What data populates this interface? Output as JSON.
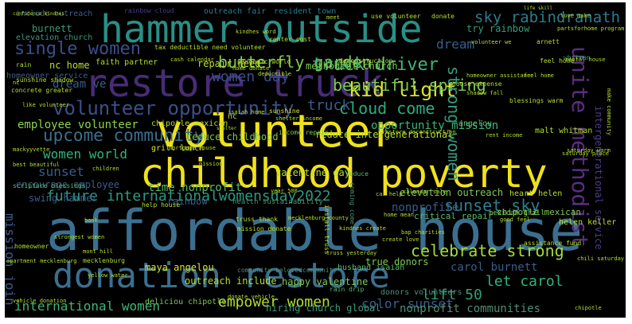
{
  "wordcloud": {
    "words": [
      {
        "text": "affordable house",
        "color": "#3b6f8f"
      },
      {
        "text": "childhood poverty",
        "color": "#f0e11b"
      },
      {
        "text": "volunteer",
        "color": "#f0e11b"
      },
      {
        "text": "restore truck",
        "color": "#482c76"
      },
      {
        "text": "hammer outside",
        "color": "#2a8f86"
      },
      {
        "text": "donation restore",
        "color": "#3b6f8f"
      },
      {
        "text": "volunteer opportunity",
        "color": "#3a4f8a"
      },
      {
        "text": "unite methodist",
        "color": "#5a2d85"
      },
      {
        "text": "future internationalwomensday2022",
        "color": "#2a9a82"
      },
      {
        "text": "butterfly garden",
        "color": "#80c94f"
      },
      {
        "text": "kid light",
        "color": "#d7e22a"
      },
      {
        "text": "sky rabindranath",
        "color": "#2d7c8c"
      },
      {
        "text": "truck driver",
        "color": "#3fb477"
      },
      {
        "text": "single women",
        "color": "#3a4f8a"
      },
      {
        "text": "beautiful spring",
        "color": "#7dca52"
      },
      {
        "text": "upcome community",
        "color": "#3b6f8f"
      },
      {
        "text": "women day",
        "color": "#3a4f8a"
      },
      {
        "text": "cloud come",
        "color": "#28ae80"
      },
      {
        "text": "opportunity mission",
        "color": "#3fb477"
      },
      {
        "text": "strong women",
        "color": "#3a9a7d"
      },
      {
        "text": "truck",
        "color": "#3a5d8b"
      },
      {
        "text": "women world",
        "color": "#2fb47c"
      },
      {
        "text": "sunset",
        "color": "#3a5d8b"
      },
      {
        "text": "sunset sky",
        "color": "#2e7e8e"
      },
      {
        "text": "celebrate strong",
        "color": "#a5db36"
      },
      {
        "text": "international women",
        "color": "#3fb477"
      },
      {
        "text": "empower women",
        "color": "#b5de2b"
      },
      {
        "text": "color sunset",
        "color": "#3a5d8b"
      },
      {
        "text": "lift 50",
        "color": "#2fa07d"
      },
      {
        "text": "let carol",
        "color": "#2fb47c"
      },
      {
        "text": "carol burnett",
        "color": "#3a5d8b"
      },
      {
        "text": "nonprofit communities",
        "color": "#4f8f74"
      },
      {
        "text": "mission join",
        "color": "#3a5d8b"
      },
      {
        "text": "employee volunteer",
        "color": "#8bd54a"
      },
      {
        "text": "encourage employee",
        "color": "#3a5d8b"
      },
      {
        "text": "reduce childhood",
        "color": "#7dca52"
      },
      {
        "text": "time nonprofit",
        "color": "#5ab96b"
      },
      {
        "text": "nonprofite",
        "color": "#3a5d8b"
      },
      {
        "text": "dream",
        "color": "#3a5d8b"
      },
      {
        "text": "dream ve",
        "color": "#3a5d8b"
      },
      {
        "text": "elevation outreach",
        "color": "#7dca52"
      },
      {
        "text": "maya angelou",
        "color": "#d7e22a"
      },
      {
        "text": "outreach include",
        "color": "#b5de2b"
      },
      {
        "text": "happy valentine",
        "color": "#7dca52"
      },
      {
        "text": "valentine day",
        "color": "#b5de2b"
      },
      {
        "text": "true donors",
        "color": "#7dca52"
      },
      {
        "text": "critical repair",
        "color": "#5ab96b"
      },
      {
        "text": "intergenerational service",
        "color": "#4f3d8c"
      },
      {
        "text": "hiring church global",
        "color": "#3a9a7d"
      },
      {
        "text": "donors volunteers",
        "color": "#4f8f74"
      },
      {
        "text": "swing hammer",
        "color": "#3a5d8b"
      },
      {
        "text": "rainbow",
        "color": "#3a5d8b"
      },
      {
        "text": "reduce intergenerational",
        "color": "#b5de2b"
      },
      {
        "text": "chipotle mexican",
        "color": "#7dca52"
      },
      {
        "text": "include outreach",
        "color": "#3a5d8b"
      },
      {
        "text": "burnett",
        "color": "#3a9a7d"
      },
      {
        "text": "elevation church",
        "color": "#3a9a7d"
      },
      {
        "text": "outreach fair",
        "color": "#2d7c8c"
      },
      {
        "text": "resident town",
        "color": "#2d7c8c"
      },
      {
        "text": "nc home",
        "color": "#b5de2b"
      },
      {
        "text": "methodist church",
        "color": "#7dca52"
      },
      {
        "text": "repair need",
        "color": "#b5de2b"
      },
      {
        "text": "homeowner service",
        "color": "#3a5d8b"
      },
      {
        "text": "try rainbow",
        "color": "#3a9a7d"
      },
      {
        "text": "whitman",
        "color": "#3a9a7d"
      },
      {
        "text": "angelou",
        "color": "#5ab96b"
      },
      {
        "text": "grill lunch",
        "color": "#d7e22a"
      },
      {
        "text": "husband isaiah",
        "color": "#5ab96b"
      },
      {
        "text": "rain drip",
        "color": "#5ab96b"
      },
      {
        "text": "helen keller",
        "color": "#b5de2b"
      },
      {
        "text": "heart helen",
        "color": "#b5de2b"
      },
      {
        "text": "malt whitman",
        "color": "#b5de2b"
      },
      {
        "text": "nc",
        "color": "#b5de2b"
      },
      {
        "text": "income repair",
        "color": "#7dca52"
      },
      {
        "text": "sunshine",
        "color": "#d7e22a"
      },
      {
        "text": "blessings warm",
        "color": "#b5de2b"
      },
      {
        "text": "reduce",
        "color": "#5ab96b"
      },
      {
        "text": "chipotle mexican",
        "color": "#b5de2b"
      },
      {
        "text": "mexican grill",
        "color": "#7dca52"
      },
      {
        "text": "health sustainability",
        "color": "#4f8f74"
      },
      {
        "text": "mission donate",
        "color": "#b5de2b"
      },
      {
        "text": "truss thank",
        "color": "#b5de2b"
      },
      {
        "text": "help house",
        "color": "#b5de2b"
      },
      {
        "text": "scripture blessings",
        "color": "#5ab96b"
      },
      {
        "text": "deliciou chipotle",
        "color": "#7dca52"
      },
      {
        "text": "community belovedcommunity",
        "color": "#4f8f74"
      },
      {
        "text": "rain",
        "color": "#b5de2b"
      },
      {
        "text": "sunshine shadow",
        "color": "#b5de2b"
      },
      {
        "text": "concrete greater",
        "color": "#b5de2b"
      },
      {
        "text": "faith partner",
        "color": "#b5de2b"
      },
      {
        "text": "tax deductible need volunteer",
        "color": "#b5de2b"
      },
      {
        "text": "cash calendar",
        "color": "#b5de2b"
      },
      {
        "text": "pandemic world",
        "color": "#b5de2b"
      },
      {
        "text": "home donate",
        "color": "#b5de2b"
      },
      {
        "text": "renter cost",
        "color": "#b5de2b"
      },
      {
        "text": "kindhes word",
        "color": "#b5de2b"
      },
      {
        "text": "use volunteer",
        "color": "#b5de2b"
      },
      {
        "text": "donate",
        "color": "#b5de2b"
      },
      {
        "text": "love make",
        "color": "#b5de2b"
      },
      {
        "text": "deconstruction",
        "color": "#b5de2b"
      },
      {
        "text": "homeowner assistance",
        "color": "#b5de2b"
      },
      {
        "text": "house expense",
        "color": "#b5de2b"
      },
      {
        "text": "shadow fall",
        "color": "#b5de2b"
      },
      {
        "text": "feel home",
        "color": "#b5de2b"
      },
      {
        "text": "deductible",
        "color": "#b5de2b"
      },
      {
        "text": "arnett",
        "color": "#b5de2b"
      },
      {
        "text": "life skill",
        "color": "#b5de2b"
      },
      {
        "text": "rainbow cloud",
        "color": "#4f3d8c"
      },
      {
        "text": "confidence kindnes",
        "color": "#b5de2b"
      },
      {
        "text": "nc",
        "color": "#b5de2b"
      },
      {
        "text": "homeowner",
        "color": "#b5de2b"
      },
      {
        "text": "apartment mecklenburg",
        "color": "#b5de2b"
      },
      {
        "text": "mecklenburg",
        "color": "#b5de2b"
      },
      {
        "text": "vehicle donation",
        "color": "#b5de2b"
      },
      {
        "text": "saturday warm",
        "color": "#b5de2b"
      },
      {
        "text": "car help",
        "color": "#b5de2b"
      },
      {
        "text": "home mean",
        "color": "#b5de2b"
      },
      {
        "text": "shelter",
        "color": "#b5de2b"
      },
      {
        "text": "bap charities",
        "color": "#b5de2b"
      },
      {
        "text": "create love",
        "color": "#b5de2b"
      },
      {
        "text": "assistance fund",
        "color": "#b5de2b"
      },
      {
        "text": "truss yesterday",
        "color": "#b5de2b"
      },
      {
        "text": "year 500",
        "color": "#b5de2b"
      },
      {
        "text": "donate vehicle",
        "color": "#b5de2b"
      },
      {
        "text": "chipotle",
        "color": "#b5de2b"
      },
      {
        "text": "mackyyvette",
        "color": "#b5de2b"
      },
      {
        "text": "best beautiful",
        "color": "#b5de2b"
      },
      {
        "text": "isaiah home",
        "color": "#b5de2b"
      },
      {
        "text": "rental house",
        "color": "#b5de2b"
      },
      {
        "text": "partsforhome program",
        "color": "#b5de2b"
      },
      {
        "text": "calendar sale",
        "color": "#b5de2b"
      },
      {
        "text": "mortgage house",
        "color": "#b5de2b"
      },
      {
        "text": "restore deconstruction",
        "color": "#b5de2b"
      },
      {
        "text": "like volunteer",
        "color": "#b5de2b"
      },
      {
        "text": "volunteer we",
        "color": "#b5de2b"
      },
      {
        "text": "feel home",
        "color": "#b5de2b"
      },
      {
        "text": "make community",
        "color": "#b5de2b"
      },
      {
        "text": "saturday place",
        "color": "#b5de2b"
      },
      {
        "text": "rent income",
        "color": "#b5de2b"
      },
      {
        "text": "kindnes create",
        "color": "#b5de2b"
      },
      {
        "text": "mecklenburg county",
        "color": "#b5de2b"
      },
      {
        "text": "shelter income",
        "color": "#b5de2b"
      },
      {
        "text": "bank",
        "color": "#b5de2b"
      },
      {
        "text": "mont hill",
        "color": "#b5de2b"
      },
      {
        "text": "strongest women",
        "color": "#b5de2b"
      },
      {
        "text": "install truss",
        "color": "#b5de2b"
      },
      {
        "text": "coming come",
        "color": "#4f8f74"
      },
      {
        "text": "children",
        "color": "#b5de2b"
      },
      {
        "text": "mission",
        "color": "#b5de2b"
      },
      {
        "text": "yellow water",
        "color": "#b5de2b"
      },
      {
        "text": "chili saturday",
        "color": "#b5de2b"
      },
      {
        "text": "meet",
        "color": "#b5de2b"
      },
      {
        "text": "good feel",
        "color": "#b5de2b"
      }
    ]
  }
}
